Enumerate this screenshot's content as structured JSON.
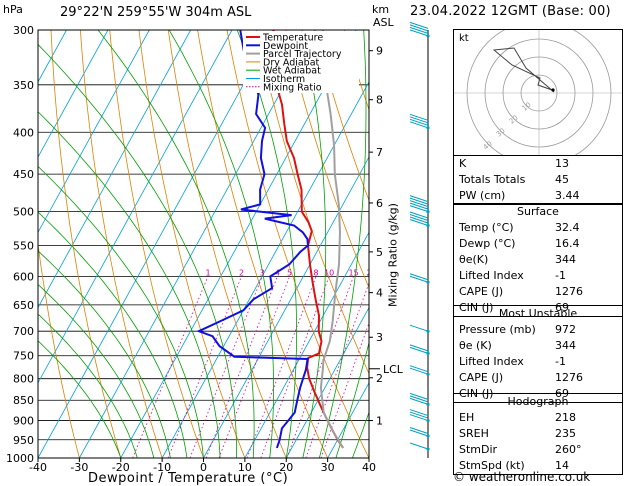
{
  "header": {
    "pressure_unit": "hPa",
    "location": "29°22'N  259°55'W  304m  ASL",
    "height_unit_line1": "km",
    "height_unit_line2": "ASL",
    "date": "23.04.2022  12GMT  (Base: 00)"
  },
  "legend": [
    "Temperature",
    "Dewpoint",
    "Parcel Trajectory",
    "Dry Adiabat",
    "Wet Adiabat",
    "Isotherm",
    "Mixing Ratio"
  ],
  "colors": {
    "temperature": "#e01010",
    "dewpoint": "#1010e0",
    "parcel": "#a0a0a0",
    "dry_adiabat": "#e08000",
    "wet_adiabat": "#00a000",
    "isotherm": "#00a0e0",
    "mixing_ratio": "#d000a0",
    "wind": "#00a0c0"
  },
  "chart_data": {
    "type": "line",
    "title": "Skew-T log-P diagram",
    "xlabel": "Dewpoint / Temperature (°C)",
    "ylabel": "hPa",
    "right_label": "Mixing Ratio (g/kg)",
    "xlim": [
      -40,
      40
    ],
    "x_ticks": [
      "-40",
      "-30",
      "-20",
      "-10",
      "0",
      "10",
      "20",
      "30",
      "40"
    ],
    "pressure_ticks": [
      300,
      350,
      400,
      450,
      500,
      550,
      600,
      650,
      700,
      750,
      800,
      850,
      900,
      950,
      1000
    ],
    "km_ticks": [
      {
        "km": "9",
        "p": 318
      },
      {
        "km": "8",
        "p": 365
      },
      {
        "km": "7",
        "p": 423
      },
      {
        "km": "6",
        "p": 488
      },
      {
        "km": "5",
        "p": 560
      },
      {
        "km": "4",
        "p": 628
      },
      {
        "km": "3",
        "p": 712
      },
      {
        "km": "2",
        "p": 798
      },
      {
        "km": "1",
        "p": 900
      }
    ],
    "lcl_label": "LCL",
    "lcl_p": 778,
    "mixing_ratio_labels": [
      "1",
      "2",
      "3",
      "4",
      "5",
      "8",
      "10",
      "15",
      "20",
      "25"
    ],
    "series": [
      {
        "name": "Temperature",
        "points": [
          [
            32.4,
            972
          ],
          [
            30,
            950
          ],
          [
            27,
            920
          ],
          [
            24,
            890
          ],
          [
            21,
            860
          ],
          [
            18,
            830
          ],
          [
            15,
            800
          ],
          [
            13,
            775
          ],
          [
            12,
            755
          ],
          [
            14,
            745
          ],
          [
            13,
            720
          ],
          [
            11,
            700
          ],
          [
            9,
            670
          ],
          [
            6,
            640
          ],
          [
            3,
            610
          ],
          [
            0,
            580
          ],
          [
            -3,
            550
          ],
          [
            -4,
            528
          ],
          [
            -6,
            515
          ],
          [
            -9,
            500
          ],
          [
            -12,
            470
          ],
          [
            -15,
            450
          ],
          [
            -18,
            430
          ],
          [
            -22,
            410
          ],
          [
            -25,
            390
          ],
          [
            -28,
            370
          ],
          [
            -32,
            350
          ],
          [
            -35,
            330
          ],
          [
            -38,
            310
          ],
          [
            -40,
            300
          ]
        ]
      },
      {
        "name": "Dewpoint",
        "points": [
          [
            16.4,
            972
          ],
          [
            16,
            950
          ],
          [
            15,
            920
          ],
          [
            16,
            880
          ],
          [
            15,
            850
          ],
          [
            14,
            820
          ],
          [
            13,
            780
          ],
          [
            12,
            757
          ],
          [
            -6,
            752
          ],
          [
            -11,
            730
          ],
          [
            -14,
            710
          ],
          [
            -18,
            700
          ],
          [
            -14,
            680
          ],
          [
            -10,
            660
          ],
          [
            -9,
            640
          ],
          [
            -6,
            620
          ],
          [
            -8,
            600
          ],
          [
            -5,
            580
          ],
          [
            -4,
            560
          ],
          [
            -3,
            550
          ],
          [
            -4,
            540
          ],
          [
            -6,
            530
          ],
          [
            -9,
            520
          ],
          [
            -17,
            510
          ],
          [
            -11,
            505
          ],
          [
            -24,
            497
          ],
          [
            -20,
            490
          ],
          [
            -22,
            470
          ],
          [
            -23,
            450
          ],
          [
            -26,
            430
          ],
          [
            -28,
            410
          ],
          [
            -29,
            395
          ],
          [
            -33,
            380
          ],
          [
            -35,
            360
          ],
          [
            -38,
            345
          ],
          [
            -42,
            330
          ],
          [
            -44,
            320
          ],
          [
            -46,
            310
          ],
          [
            -48,
            300
          ]
        ]
      },
      {
        "name": "Parcel Trajectory",
        "points": [
          [
            32.4,
            972
          ],
          [
            28,
            930
          ],
          [
            23,
            880
          ],
          [
            19,
            820
          ],
          [
            17,
            778
          ],
          [
            16,
            760
          ],
          [
            15,
            720
          ],
          [
            13,
            680
          ],
          [
            10,
            630
          ],
          [
            7,
            580
          ],
          [
            3,
            530
          ],
          [
            -1,
            490
          ],
          [
            -6,
            450
          ],
          [
            -10,
            415
          ],
          [
            -15,
            380
          ],
          [
            -20,
            350
          ],
          [
            -25,
            320
          ],
          [
            -28,
            300
          ]
        ]
      }
    ]
  },
  "hodograph": {
    "label": "kt",
    "ring_labels": [
      "10",
      "20",
      "30",
      "40"
    ]
  },
  "indices": {
    "k_label": "K",
    "k": "13",
    "tt_label": "Totals Totals",
    "tt": "45",
    "pw_label": "PW (cm)",
    "pw": "3.44"
  },
  "surface": {
    "title": "Surface",
    "rows": [
      {
        "label": "Temp (°C)",
        "value": "32.4"
      },
      {
        "label": "Dewp (°C)",
        "value": "16.4"
      },
      {
        "label": "θe(K)",
        "value": "344"
      },
      {
        "label": "Lifted Index",
        "value": "-1"
      },
      {
        "label": "CAPE (J)",
        "value": "1276"
      },
      {
        "label": "CIN (J)",
        "value": "69"
      }
    ]
  },
  "most_unstable": {
    "title": "Most Unstable",
    "rows": [
      {
        "label": "Pressure (mb)",
        "value": "972"
      },
      {
        "label": "θe (K)",
        "value": "344"
      },
      {
        "label": "Lifted Index",
        "value": "-1"
      },
      {
        "label": "CAPE (J)",
        "value": "1276"
      },
      {
        "label": "CIN (J)",
        "value": "69"
      }
    ]
  },
  "hodo_params": {
    "title": "Hodograph",
    "rows": [
      {
        "label": "EH",
        "value": "218"
      },
      {
        "label": "SREH",
        "value": "235"
      },
      {
        "label": "StmDir",
        "value": "260°"
      },
      {
        "label": "StmSpd (kt)",
        "value": "14"
      }
    ]
  },
  "footer": "© weatheronline.co.uk"
}
